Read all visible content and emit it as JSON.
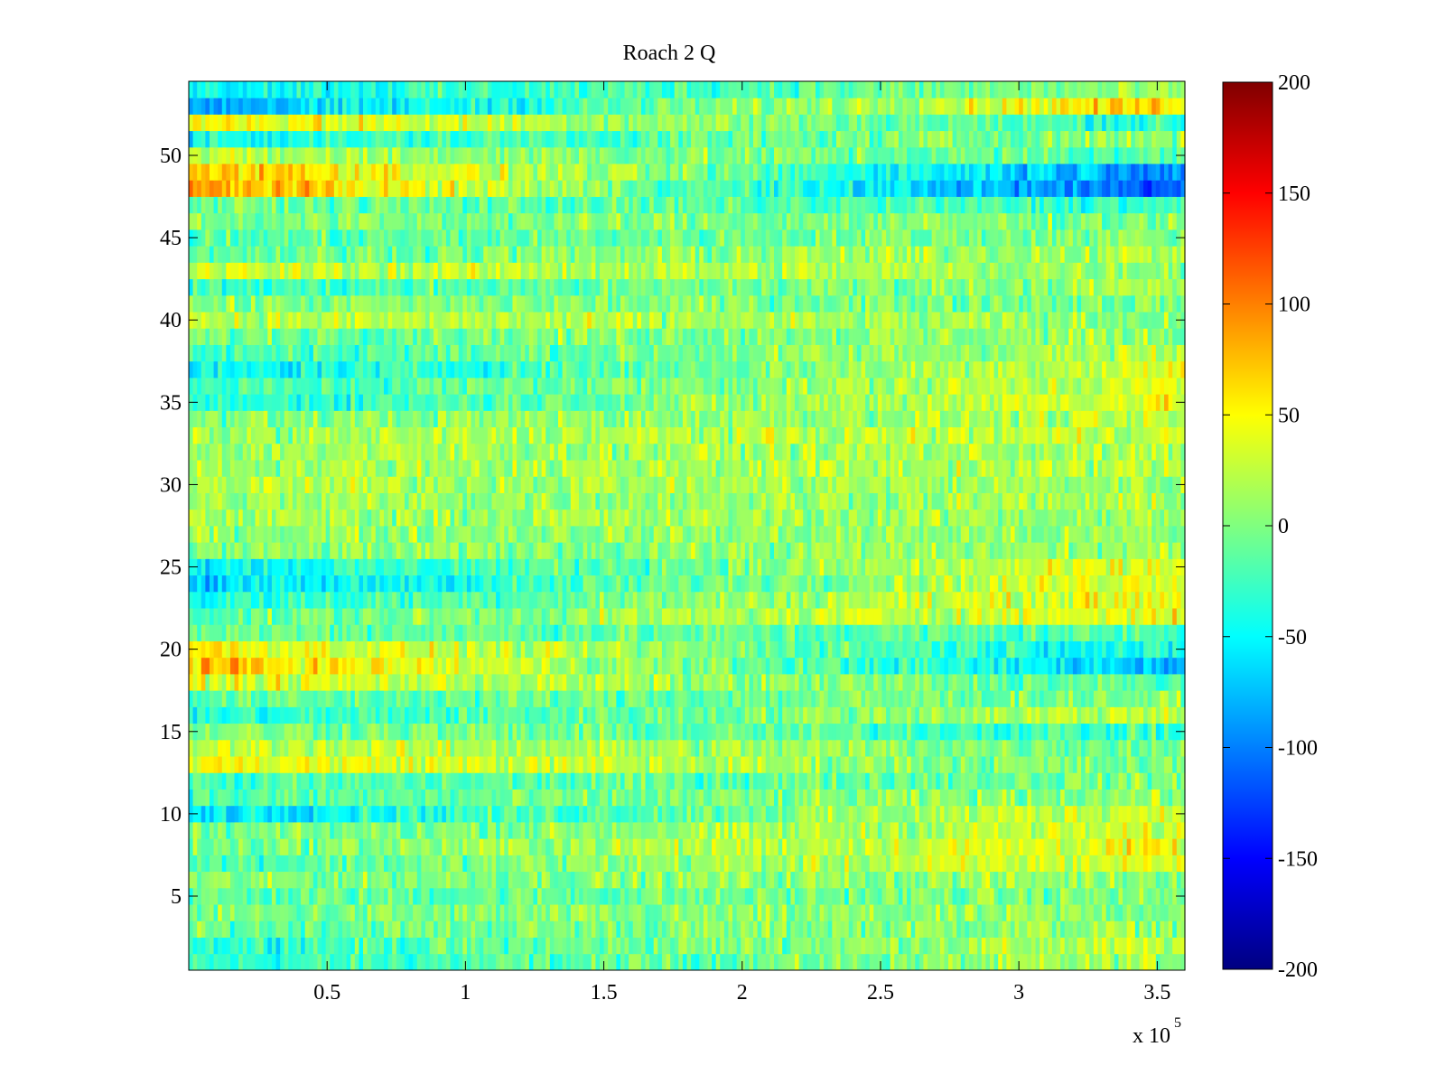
{
  "chart_data": {
    "type": "heatmap",
    "title": "Roach 2 Q",
    "xlabel": "",
    "ylabel": "",
    "x_exponent_label": "x 10",
    "x_exponent_power": "5",
    "xlim": [
      0,
      3.6
    ],
    "ylim": [
      0.5,
      54.5
    ],
    "rows": 54,
    "columns_per_row": 240,
    "x_ticks": [
      0.5,
      1,
      1.5,
      2,
      2.5,
      3,
      3.5
    ],
    "x_tick_labels": [
      "0.5",
      "1",
      "1.5",
      "2",
      "2.5",
      "3",
      "3.5"
    ],
    "y_ticks": [
      5,
      10,
      15,
      20,
      25,
      30,
      35,
      40,
      45,
      50
    ],
    "y_tick_labels": [
      "5",
      "10",
      "15",
      "20",
      "25",
      "30",
      "35",
      "40",
      "45",
      "50"
    ],
    "colorbar": {
      "colormap": "jet",
      "min": -200,
      "max": 200,
      "ticks": [
        -200,
        -150,
        -100,
        -50,
        0,
        50,
        100,
        150,
        200
      ],
      "tick_labels": [
        "-200",
        "-150",
        "-100",
        "-50",
        "0",
        "50",
        "100",
        "150",
        "200"
      ]
    },
    "row_profiles": [
      {
        "row": 1,
        "start": -35,
        "end": 15
      },
      {
        "row": 2,
        "start": -30,
        "end": 25
      },
      {
        "row": 3,
        "start": -10,
        "end": 10
      },
      {
        "row": 4,
        "start": -5,
        "end": 5
      },
      {
        "row": 5,
        "start": -15,
        "end": 0
      },
      {
        "row": 6,
        "start": 0,
        "end": 10
      },
      {
        "row": 7,
        "start": -20,
        "end": 40
      },
      {
        "row": 8,
        "start": -5,
        "end": 45
      },
      {
        "row": 9,
        "start": -10,
        "end": 30
      },
      {
        "row": 10,
        "start": -55,
        "end": 40
      },
      {
        "row": 11,
        "start": -20,
        "end": 10
      },
      {
        "row": 12,
        "start": -25,
        "end": 0
      },
      {
        "row": 13,
        "start": 50,
        "end": -10
      },
      {
        "row": 14,
        "start": 30,
        "end": -5
      },
      {
        "row": 15,
        "start": 5,
        "end": -30
      },
      {
        "row": 16,
        "start": -40,
        "end": 30
      },
      {
        "row": 17,
        "start": -15,
        "end": 0
      },
      {
        "row": 18,
        "start": 40,
        "end": -20
      },
      {
        "row": 19,
        "start": 75,
        "end": -75
      },
      {
        "row": 20,
        "start": 55,
        "end": -50
      },
      {
        "row": 21,
        "start": -5,
        "end": -20
      },
      {
        "row": 22,
        "start": -15,
        "end": 45
      },
      {
        "row": 23,
        "start": -40,
        "end": 50
      },
      {
        "row": 24,
        "start": -70,
        "end": 50
      },
      {
        "row": 25,
        "start": -50,
        "end": 40
      },
      {
        "row": 26,
        "start": 0,
        "end": 10
      },
      {
        "row": 27,
        "start": 10,
        "end": 5
      },
      {
        "row": 28,
        "start": 15,
        "end": 10
      },
      {
        "row": 29,
        "start": 10,
        "end": 15
      },
      {
        "row": 30,
        "start": 20,
        "end": 10
      },
      {
        "row": 31,
        "start": 15,
        "end": 20
      },
      {
        "row": 32,
        "start": 15,
        "end": 15
      },
      {
        "row": 33,
        "start": 10,
        "end": 30
      },
      {
        "row": 34,
        "start": 0,
        "end": 20
      },
      {
        "row": 35,
        "start": -40,
        "end": 45
      },
      {
        "row": 36,
        "start": -30,
        "end": 35
      },
      {
        "row": 37,
        "start": -55,
        "end": 40
      },
      {
        "row": 38,
        "start": -25,
        "end": 20
      },
      {
        "row": 39,
        "start": -5,
        "end": 10
      },
      {
        "row": 40,
        "start": 25,
        "end": 5
      },
      {
        "row": 41,
        "start": 0,
        "end": 0
      },
      {
        "row": 42,
        "start": -30,
        "end": 15
      },
      {
        "row": 43,
        "start": 30,
        "end": 10
      },
      {
        "row": 44,
        "start": -10,
        "end": 20
      },
      {
        "row": 45,
        "start": -20,
        "end": 5
      },
      {
        "row": 46,
        "start": 0,
        "end": 0
      },
      {
        "row": 47,
        "start": -5,
        "end": -30
      },
      {
        "row": 48,
        "start": 90,
        "end": -120
      },
      {
        "row": 49,
        "start": 80,
        "end": -90
      },
      {
        "row": 50,
        "start": 20,
        "end": -20
      },
      {
        "row": 51,
        "start": -40,
        "end": 10
      },
      {
        "row": 52,
        "start": 55,
        "end": -35
      },
      {
        "row": 53,
        "start": -85,
        "end": 70
      },
      {
        "row": 54,
        "start": -45,
        "end": 5
      }
    ]
  }
}
